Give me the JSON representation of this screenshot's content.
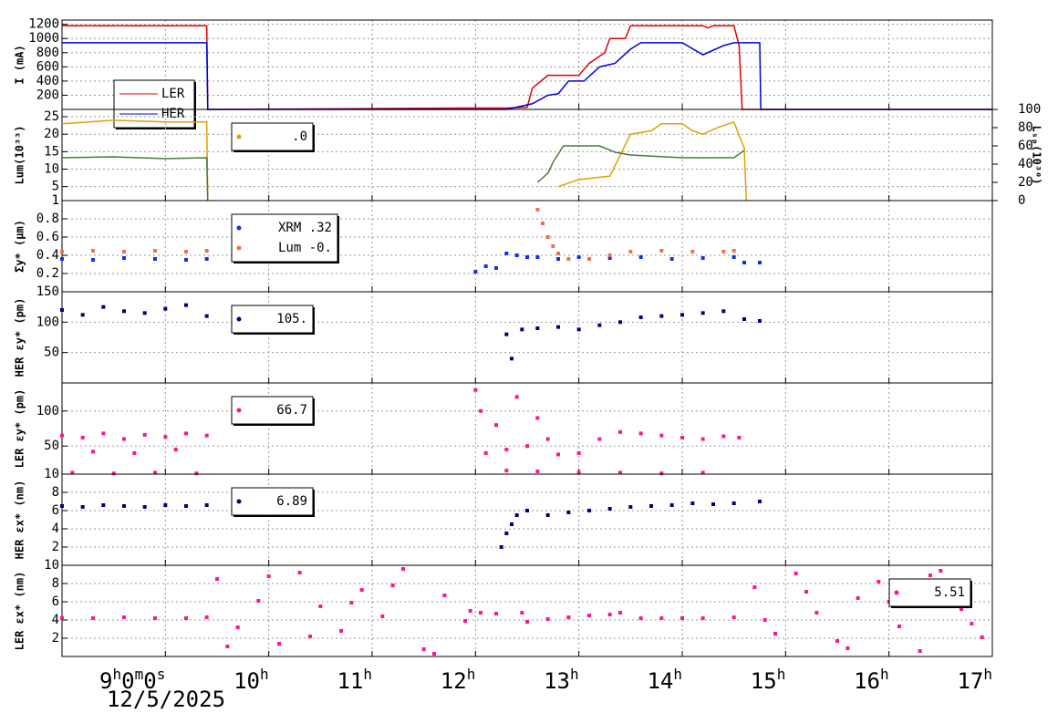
{
  "chart_data": [
    {
      "type": "line",
      "ylabel": "I (mA)",
      "xlim": [
        8,
        17
      ],
      "xticks": [
        {
          "value": 9,
          "label": "9h0m0s"
        },
        {
          "value": 10,
          "label": "10h"
        },
        {
          "value": 11,
          "label": "11h"
        },
        {
          "value": 12,
          "label": "12h"
        },
        {
          "value": 13,
          "label": "13h"
        },
        {
          "value": 14,
          "label": "14h"
        },
        {
          "value": 15,
          "label": "15h"
        },
        {
          "value": 16,
          "label": "16h"
        },
        {
          "value": 17,
          "label": "17h"
        }
      ],
      "ylim": [
        0,
        1260
      ],
      "yticks": [
        200,
        400,
        600,
        800,
        1000,
        1200
      ],
      "grid": true,
      "legend": "lower left",
      "series": [
        {
          "name": "LER",
          "color": "#e00000",
          "x": [
            8,
            9.4,
            9.41,
            12.05,
            12.3,
            12.5,
            12.55,
            12.7,
            13.0,
            13.1,
            13.25,
            13.3,
            13.45,
            13.5,
            14.2,
            14.25,
            14.3,
            14.5,
            14.55,
            14.58,
            17
          ],
          "values": [
            1180,
            1180,
            0,
            20,
            20,
            30,
            300,
            480,
            480,
            650,
            800,
            1000,
            1000,
            1180,
            1180,
            1150,
            1180,
            1180,
            900,
            0,
            0
          ]
        },
        {
          "name": "HER",
          "color": "#0000e0",
          "x": [
            8,
            9.4,
            9.41,
            12.3,
            12.55,
            12.7,
            12.8,
            12.9,
            13.05,
            13.2,
            13.35,
            13.5,
            13.6,
            14.0,
            14.2,
            14.4,
            14.5,
            14.75,
            14.76,
            17
          ],
          "values": [
            940,
            940,
            0,
            0,
            80,
            200,
            220,
            400,
            400,
            600,
            650,
            850,
            940,
            940,
            770,
            900,
            940,
            940,
            0,
            0
          ]
        }
      ]
    },
    {
      "type": "line",
      "ylabel": "Lum(10³³)",
      "y2label": "Lₛₚ(10³⁰)",
      "xlim": [
        8,
        17
      ],
      "xticks": [
        {
          "value": 9,
          "label": "9h0m0s"
        },
        {
          "value": 10,
          "label": "10h"
        },
        {
          "value": 11,
          "label": "11h"
        },
        {
          "value": 12,
          "label": "12h"
        },
        {
          "value": 13,
          "label": "13h"
        },
        {
          "value": 14,
          "label": "14h"
        },
        {
          "value": 15,
          "label": "15h"
        },
        {
          "value": 16,
          "label": "16h"
        },
        {
          "value": 17,
          "label": "17h"
        }
      ],
      "ylim": [
        1,
        27.1
      ],
      "yticks": [
        1,
        5,
        10,
        15,
        20,
        25
      ],
      "y2lim": [
        0,
        100
      ],
      "y2ticks": [
        0,
        20,
        40,
        60,
        80,
        100
      ],
      "grid": true,
      "legend": "upper left",
      "series": [
        {
          "name": ".0",
          "color": "#e0a000",
          "x": [
            8,
            8.5,
            9,
            9.4,
            9.41,
            12.0,
            12.8,
            13.0,
            13.3,
            13.4,
            13.5,
            13.7,
            13.8,
            14.0,
            14.1,
            14.2,
            14.35,
            14.5,
            14.6,
            14.62
          ],
          "values": [
            23,
            24,
            23.5,
            23.5,
            1,
            null,
            5,
            7,
            8,
            14,
            20,
            21,
            23,
            23,
            21,
            20,
            22,
            23.5,
            16,
            1
          ]
        },
        {
          "color": "#4a7a3a",
          "axis": "y2",
          "x": [
            8,
            8.5,
            9,
            9.4,
            9.41,
            12.0,
            12.6,
            12.7,
            12.75,
            12.85,
            13.2,
            13.35,
            13.5,
            14.0,
            14.5,
            14.6
          ],
          "values": [
            47,
            48,
            46,
            47,
            0,
            null,
            20,
            30,
            42,
            60,
            60,
            53,
            50,
            47,
            47,
            55
          ]
        }
      ]
    },
    {
      "type": "scatter",
      "ylabel": "Σy* (μm)",
      "xlim": [
        8,
        17
      ],
      "xticks": [
        {
          "value": 9,
          "label": "9h0m0s"
        },
        {
          "value": 10,
          "label": "10h"
        },
        {
          "value": 11,
          "label": "11h"
        },
        {
          "value": 12,
          "label": "12h"
        },
        {
          "value": 13,
          "label": "13h"
        },
        {
          "value": 14,
          "label": "14h"
        },
        {
          "value": 15,
          "label": "15h"
        },
        {
          "value": 16,
          "label": "16h"
        },
        {
          "value": 17,
          "label": "17h"
        }
      ],
      "ylim": [
        0,
        1
      ],
      "yticks": [
        0.2,
        0.4,
        0.6,
        0.8,
        1
      ],
      "grid": true,
      "legend": "upper left",
      "series": [
        {
          "name": "XRM  .32",
          "color": "#1030f0",
          "x": [
            8,
            8.3,
            8.6,
            8.9,
            9.2,
            9.4,
            12.0,
            12.1,
            12.2,
            12.3,
            12.4,
            12.5,
            12.6,
            12.8,
            13.0,
            13.3,
            13.6,
            13.9,
            14.2,
            14.5,
            14.6,
            14.75
          ],
          "values": [
            0.36,
            0.35,
            0.37,
            0.36,
            0.35,
            0.36,
            0.22,
            0.28,
            0.26,
            0.42,
            0.4,
            0.38,
            0.38,
            0.36,
            0.38,
            0.37,
            0.38,
            0.36,
            0.37,
            0.38,
            0.32,
            0.32
          ]
        },
        {
          "name": "Lum -0.",
          "color": "#f07050",
          "x": [
            8,
            8.3,
            8.6,
            8.9,
            9.2,
            9.4,
            12.6,
            12.65,
            12.7,
            12.75,
            12.8,
            12.9,
            13.1,
            13.3,
            13.5,
            13.8,
            14.1,
            14.4,
            14.5
          ],
          "values": [
            0.44,
            0.45,
            0.44,
            0.45,
            0.44,
            0.45,
            0.9,
            0.75,
            0.6,
            0.5,
            0.42,
            0.36,
            0.36,
            0.4,
            0.44,
            0.45,
            0.44,
            0.44,
            0.45
          ]
        }
      ]
    },
    {
      "type": "scatter",
      "ylabel": "HER εy* (pm)",
      "xlim": [
        8,
        17
      ],
      "xticks": [
        {
          "value": 9,
          "label": "9h0m0s"
        },
        {
          "value": 10,
          "label": "10h"
        },
        {
          "value": 11,
          "label": "11h"
        },
        {
          "value": 12,
          "label": "12h"
        },
        {
          "value": 13,
          "label": "13h"
        },
        {
          "value": 14,
          "label": "14h"
        },
        {
          "value": 15,
          "label": "15h"
        },
        {
          "value": 16,
          "label": "16h"
        },
        {
          "value": 17,
          "label": "17h"
        }
      ],
      "ylim": [
        0,
        150
      ],
      "yticks": [
        50,
        100,
        150
      ],
      "grid": true,
      "legend": "upper left",
      "series": [
        {
          "name": "105.",
          "color": "#000080",
          "x": [
            8,
            8.2,
            8.4,
            8.6,
            8.8,
            9.0,
            9.2,
            9.4,
            12.3,
            12.35,
            12.45,
            12.6,
            12.8,
            13.0,
            13.2,
            13.4,
            13.6,
            13.8,
            14.0,
            14.2,
            14.4,
            14.6,
            14.75
          ],
          "values": [
            120,
            112,
            125,
            118,
            115,
            122,
            128,
            110,
            80,
            40,
            88,
            90,
            92,
            88,
            95,
            100,
            108,
            110,
            112,
            115,
            118,
            105,
            102
          ]
        }
      ]
    },
    {
      "type": "scatter",
      "ylabel": "LER εy* (pm)",
      "xlim": [
        8,
        17
      ],
      "xticks": [
        {
          "value": 9,
          "label": "9h0m0s"
        },
        {
          "value": 10,
          "label": "10h"
        },
        {
          "value": 11,
          "label": "11h"
        },
        {
          "value": 12,
          "label": "12h"
        },
        {
          "value": 13,
          "label": "13h"
        },
        {
          "value": 14,
          "label": "14h"
        },
        {
          "value": 15,
          "label": "15h"
        },
        {
          "value": 16,
          "label": "16h"
        },
        {
          "value": 17,
          "label": "17h"
        }
      ],
      "ylim": [
        10,
        140
      ],
      "yticks": [
        10,
        50,
        100
      ],
      "grid": true,
      "legend": "upper left",
      "series": [
        {
          "name": "66.7",
          "color": "#ff1493",
          "x": [
            8,
            8.2,
            8.4,
            8.6,
            8.8,
            9.0,
            9.2,
            9.4,
            12.0,
            12.05,
            12.1,
            12.2,
            12.3,
            12.4,
            12.5,
            12.6,
            12.7,
            12.8,
            13.0,
            13.2,
            13.4,
            13.6,
            13.8,
            14.0,
            14.2,
            14.4,
            14.55
          ],
          "values": [
            65,
            62,
            68,
            60,
            66,
            63,
            68,
            65,
            130,
            100,
            40,
            80,
            45,
            120,
            50,
            90,
            60,
            38,
            40,
            60,
            70,
            68,
            65,
            62,
            60,
            64,
            62
          ]
        },
        {
          "color": "#ff1493",
          "x": [
            8.1,
            8.3,
            8.5,
            8.7,
            8.9,
            9.1,
            9.3,
            12.3,
            12.6,
            13.0,
            13.4,
            13.8,
            14.2
          ],
          "values": [
            12,
            42,
            11,
            40,
            12,
            45,
            11,
            15,
            14,
            12,
            12,
            11,
            12
          ]
        }
      ]
    },
    {
      "type": "scatter",
      "ylabel": "HER εx* (nm)",
      "xlim": [
        8,
        17
      ],
      "xticks": [
        {
          "value": 9,
          "label": "9h0m0s"
        },
        {
          "value": 10,
          "label": "10h"
        },
        {
          "value": 11,
          "label": "11h"
        },
        {
          "value": 12,
          "label": "12h"
        },
        {
          "value": 13,
          "label": "13h"
        },
        {
          "value": 14,
          "label": "14h"
        },
        {
          "value": 15,
          "label": "15h"
        },
        {
          "value": 16,
          "label": "16h"
        },
        {
          "value": 17,
          "label": "17h"
        }
      ],
      "ylim": [
        0,
        10
      ],
      "yticks": [
        2,
        4,
        6,
        8
      ],
      "grid": true,
      "legend": "upper left",
      "series": [
        {
          "name": "6.89",
          "color": "#000080",
          "x": [
            8,
            8.2,
            8.4,
            8.6,
            8.8,
            9.0,
            9.2,
            9.4,
            12.25,
            12.3,
            12.35,
            12.4,
            12.5,
            12.7,
            12.9,
            13.1,
            13.3,
            13.5,
            13.7,
            13.9,
            14.1,
            14.3,
            14.5,
            14.75
          ],
          "values": [
            6.5,
            6.4,
            6.6,
            6.5,
            6.4,
            6.6,
            6.5,
            6.6,
            2,
            3.5,
            4.5,
            5.5,
            6,
            5.5,
            5.8,
            6,
            6.2,
            6.4,
            6.5,
            6.6,
            6.8,
            6.7,
            6.8,
            7
          ]
        }
      ]
    },
    {
      "type": "scatter",
      "ylabel": "LER εx* (nm)",
      "xlabel": "12/5/2025",
      "xlim": [
        8,
        17
      ],
      "xticks": [
        {
          "value": 9,
          "label": "9h0m0s"
        },
        {
          "value": 10,
          "label": "10h"
        },
        {
          "value": 11,
          "label": "11h"
        },
        {
          "value": 12,
          "label": "12h"
        },
        {
          "value": 13,
          "label": "13h"
        },
        {
          "value": 14,
          "label": "14h"
        },
        {
          "value": 15,
          "label": "15h"
        },
        {
          "value": 16,
          "label": "16h"
        },
        {
          "value": 17,
          "label": "17h"
        }
      ],
      "ylim": [
        0,
        10
      ],
      "yticks": [
        2,
        4,
        6,
        8,
        10
      ],
      "grid": true,
      "legend": "upper right",
      "series": [
        {
          "name": "5.51",
          "color": "#ff1493",
          "x": [
            8,
            8.3,
            8.6,
            8.9,
            9.2,
            9.4,
            12.05,
            12.2,
            12.45,
            12.5,
            12.7,
            12.9,
            13.1,
            13.3,
            13.4,
            13.6,
            13.8,
            14.0,
            14.2,
            14.5
          ],
          "values": [
            4.2,
            4.2,
            4.3,
            4.2,
            4.2,
            4.3,
            4.8,
            4.7,
            4.8,
            3.8,
            4.1,
            4.3,
            4.5,
            4.6,
            4.8,
            4.2,
            4.2,
            4.2,
            4.2,
            4.3
          ]
        },
        {
          "color": "#ff1493",
          "x": [
            9.5,
            9.7,
            9.9,
            10.1,
            10.3,
            10.5,
            10.7,
            10.9,
            11.1,
            11.3,
            11.5,
            11.7,
            11.9,
            9.6,
            10.0,
            10.4,
            10.8,
            11.2,
            11.6,
            11.95,
            14.7,
            14.9,
            15.1,
            15.3,
            15.5,
            15.7,
            15.9,
            16.1,
            16.3,
            16.5,
            16.7,
            16.9,
            14.8,
            15.2,
            15.6,
            16.0,
            16.4,
            16.8
          ],
          "values": [
            8.5,
            3.2,
            6.1,
            1.4,
            9.2,
            5.5,
            2.8,
            7.3,
            4.4,
            9.6,
            0.8,
            6.7,
            3.9,
            1.1,
            8.8,
            2.2,
            5.9,
            7.8,
            0.3,
            5.0,
            7.6,
            2.5,
            9.1,
            4.8,
            1.7,
            6.4,
            8.2,
            3.3,
            0.6,
            9.4,
            5.2,
            2.1,
            4.0,
            7.1,
            0.9,
            6.0,
            8.9,
            3.6
          ]
        }
      ]
    }
  ]
}
